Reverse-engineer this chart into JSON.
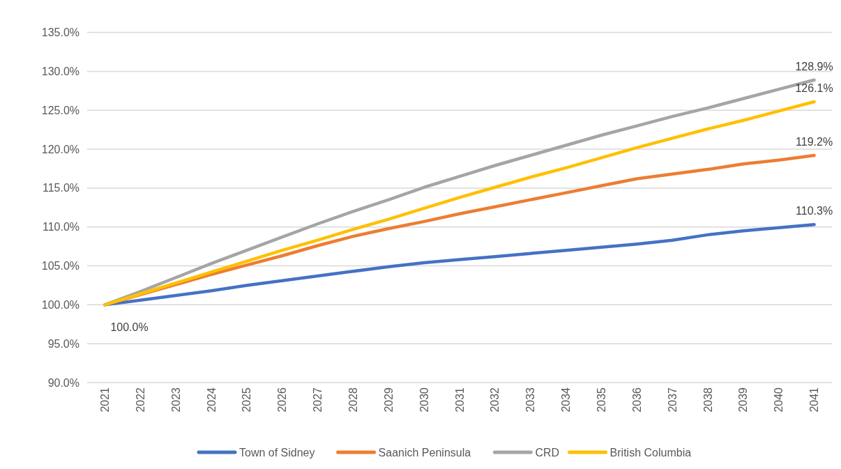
{
  "chart_data": {
    "type": "line",
    "categories": [
      "2021",
      "2022",
      "2023",
      "2024",
      "2025",
      "2026",
      "2027",
      "2028",
      "2029",
      "2030",
      "2031",
      "2032",
      "2033",
      "2034",
      "2035",
      "2036",
      "2037",
      "2038",
      "2039",
      "2040",
      "2041"
    ],
    "ylim": [
      90,
      135
    ],
    "yticks": [
      {
        "value": 90,
        "label": "90.0%"
      },
      {
        "value": 95,
        "label": "95.0%"
      },
      {
        "value": 100,
        "label": "100.0%"
      },
      {
        "value": 105,
        "label": "105.0%"
      },
      {
        "value": 110,
        "label": "110.0%"
      },
      {
        "value": 115,
        "label": "115.0%"
      },
      {
        "value": 120,
        "label": "120.0%"
      },
      {
        "value": 125,
        "label": "125.0%"
      },
      {
        "value": 130,
        "label": "130.0%"
      },
      {
        "value": 135,
        "label": "135.0%"
      }
    ],
    "grid": "y",
    "legend": "bottom",
    "marker": "none",
    "line_style": "solid",
    "series": [
      {
        "name": "Town of Sidney",
        "color": "#4472c4",
        "values": [
          100,
          100.6,
          101.2,
          101.8,
          102.5,
          103.1,
          103.7,
          104.3,
          104.9,
          105.4,
          105.8,
          106.2,
          106.6,
          107.0,
          107.4,
          107.8,
          108.3,
          109.0,
          109.5,
          109.9,
          110.3
        ],
        "value_labels": [
          "100.0%",
          null,
          null,
          null,
          null,
          null,
          null,
          null,
          null,
          null,
          null,
          null,
          null,
          null,
          null,
          null,
          null,
          null,
          null,
          null,
          "110.3%"
        ]
      },
      {
        "name": "Saanich Peninsula",
        "color": "#ed7d31",
        "values": [
          100,
          101.3,
          102.6,
          103.9,
          105.1,
          106.3,
          107.6,
          108.8,
          109.8,
          110.7,
          111.7,
          112.6,
          113.5,
          114.4,
          115.3,
          116.2,
          116.8,
          117.4,
          118.1,
          118.6,
          119.2
        ],
        "value_labels": [
          null,
          null,
          null,
          null,
          null,
          null,
          null,
          null,
          null,
          null,
          null,
          null,
          null,
          null,
          null,
          null,
          null,
          null,
          null,
          null,
          "119.2%"
        ]
      },
      {
        "name": "CRD",
        "color": "#a5a5a5",
        "values": [
          100,
          101.7,
          103.5,
          105.3,
          107.0,
          108.7,
          110.4,
          112.0,
          113.5,
          115.1,
          116.5,
          117.9,
          119.2,
          120.5,
          121.8,
          123.0,
          124.2,
          125.3,
          126.5,
          127.7,
          128.9
        ],
        "value_labels": [
          null,
          null,
          null,
          null,
          null,
          null,
          null,
          null,
          null,
          null,
          null,
          null,
          null,
          null,
          null,
          null,
          null,
          null,
          null,
          null,
          "128.9%"
        ]
      },
      {
        "name": "British Columbia",
        "color": "#ffc000",
        "values": [
          100,
          101.4,
          102.8,
          104.2,
          105.6,
          107.0,
          108.3,
          109.7,
          111.0,
          112.4,
          113.8,
          115.1,
          116.4,
          117.6,
          118.9,
          120.2,
          121.4,
          122.6,
          123.7,
          124.9,
          126.1
        ],
        "value_labels": [
          null,
          null,
          null,
          null,
          null,
          null,
          null,
          null,
          null,
          null,
          null,
          null,
          null,
          null,
          null,
          null,
          null,
          null,
          null,
          null,
          "126.1%"
        ]
      }
    ]
  }
}
